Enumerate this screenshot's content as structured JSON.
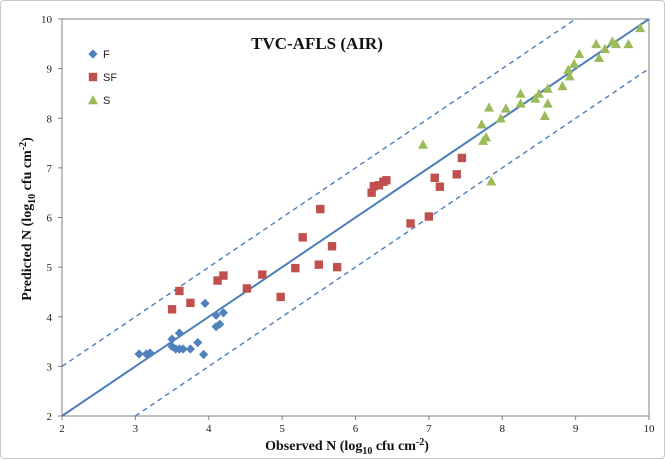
{
  "chart_data": {
    "type": "scatter",
    "title": "TVC-AFLS (AIR)",
    "xlabel": "Observed N (log10 cfu cm-2)",
    "ylabel": "Predicted N (log10 cfu cm-2)",
    "xlabel_parts": {
      "pre": "Observed N (log",
      "sub": "10",
      "mid": " cfu cm",
      "sup": "-2",
      "post": ")"
    },
    "ylabel_parts": {
      "pre": "Predicted N (log",
      "sub": "10",
      "mid": " cfu cm",
      "sup": "-2",
      "post": ")"
    },
    "xlim": [
      2,
      10
    ],
    "ylim": [
      2,
      10
    ],
    "xticks": [
      2,
      3,
      4,
      5,
      6,
      7,
      8,
      9,
      10
    ],
    "yticks": [
      2,
      3,
      4,
      5,
      6,
      7,
      8,
      9,
      10
    ],
    "grid": false,
    "legend_position": "top-left",
    "lines": [
      {
        "kind": "identity",
        "style": "solid",
        "color": "#4a7ebb",
        "x": [
          2,
          10
        ],
        "y": [
          2,
          10
        ]
      },
      {
        "kind": "upper-bound",
        "style": "dashed",
        "color": "#4a7ebb",
        "x": [
          2,
          9.0
        ],
        "y": [
          3,
          10
        ]
      },
      {
        "kind": "lower-bound",
        "style": "dashed",
        "color": "#4a7ebb",
        "x": [
          3,
          10
        ],
        "y": [
          2,
          9
        ]
      }
    ],
    "series": [
      {
        "name": "F",
        "marker": "diamond",
        "color": "#4f81bd",
        "x": [
          3.05,
          3.15,
          3.2,
          3.5,
          3.5,
          3.55,
          3.6,
          3.6,
          3.65,
          3.75,
          3.85,
          3.93,
          3.95,
          4.1,
          4.1,
          4.15,
          4.2
        ],
        "y": [
          3.25,
          3.25,
          3.27,
          3.4,
          3.55,
          3.35,
          3.67,
          3.35,
          3.35,
          3.35,
          3.48,
          3.24,
          4.27,
          3.8,
          4.03,
          3.85,
          4.08
        ]
      },
      {
        "name": "SF",
        "marker": "square",
        "color": "#c0504d",
        "x": [
          3.5,
          3.6,
          3.75,
          4.12,
          4.2,
          4.52,
          4.73,
          4.98,
          5.18,
          5.28,
          5.5,
          5.52,
          5.68,
          5.75,
          6.22,
          6.25,
          6.32,
          6.38,
          6.42,
          6.75,
          7.0,
          7.08,
          7.15,
          7.38,
          7.45
        ],
        "y": [
          4.15,
          4.52,
          4.28,
          4.73,
          4.83,
          4.57,
          4.85,
          4.4,
          4.98,
          5.6,
          5.05,
          6.17,
          5.42,
          5.0,
          6.5,
          6.63,
          6.65,
          6.72,
          6.75,
          5.88,
          6.02,
          6.8,
          6.62,
          6.87,
          7.2
        ]
      },
      {
        "name": "S",
        "marker": "triangle",
        "color": "#9bbb59",
        "x": [
          6.92,
          7.72,
          7.74,
          7.78,
          7.82,
          7.85,
          7.98,
          8.05,
          8.25,
          8.25,
          8.45,
          8.5,
          8.58,
          8.62,
          8.62,
          8.82,
          8.9,
          8.92,
          8.98,
          9.05,
          9.28,
          9.32,
          9.4,
          9.5,
          9.55,
          9.72,
          9.88
        ],
        "y": [
          7.47,
          7.88,
          7.55,
          7.62,
          8.22,
          6.73,
          8.0,
          8.2,
          8.3,
          8.5,
          8.4,
          8.5,
          8.05,
          8.3,
          8.6,
          8.65,
          8.98,
          8.85,
          9.1,
          9.3,
          9.5,
          9.22,
          9.4,
          9.55,
          9.5,
          9.5,
          9.82
        ]
      }
    ]
  }
}
